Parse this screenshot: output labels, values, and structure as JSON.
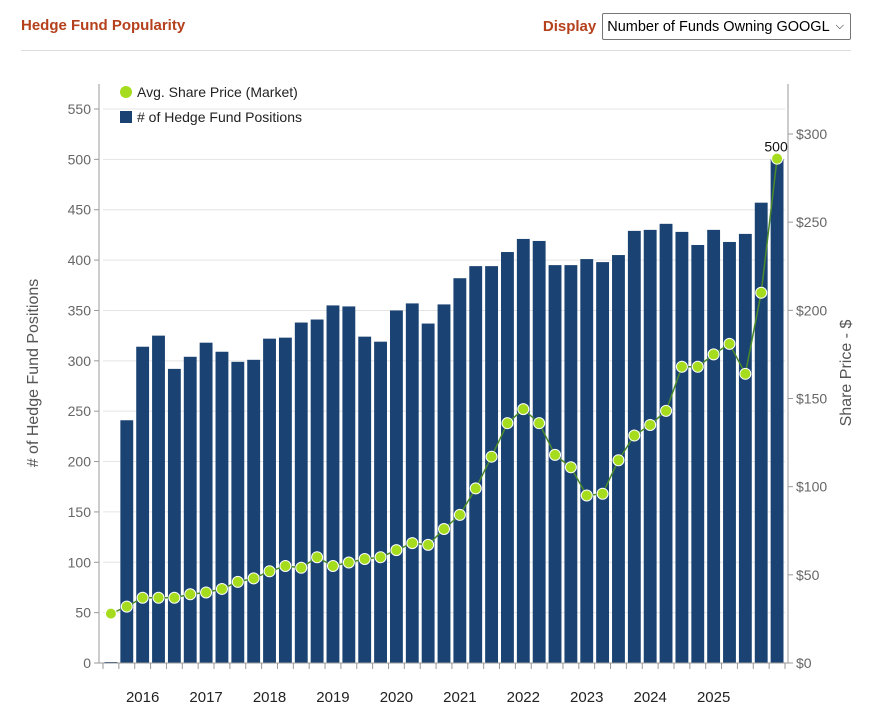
{
  "header": {
    "title": "Hedge Fund Popularity",
    "display_label": "Display",
    "display_value": "Number of Funds Owning GOOGL"
  },
  "colors": {
    "bar": "#1a4373",
    "line": "#4a8a2a",
    "point": "#a6dc1e",
    "grid": "#e4e4e4",
    "accent": "#b5401c"
  },
  "chart_data": {
    "type": "bar",
    "ylabel": "# of Hedge Fund Positions",
    "y2label": "Share Price - $",
    "ylim": [
      0,
      550
    ],
    "y_ticks": [
      0,
      50,
      100,
      150,
      200,
      250,
      300,
      350,
      400,
      450,
      500,
      550
    ],
    "y2lim": [
      0,
      300
    ],
    "y2_ticks": [
      0,
      50,
      100,
      150,
      200,
      250,
      300
    ],
    "y2_tick_labels": [
      "$0",
      "$50",
      "$100",
      "$150",
      "$200",
      "$250",
      "$300"
    ],
    "grid": true,
    "legend_position": "top-left",
    "x_year_labels": [
      "2016",
      "2017",
      "2018",
      "2019",
      "2020",
      "2021",
      "2022",
      "2023",
      "2024",
      "2025"
    ],
    "series": [
      {
        "name": "# of Hedge Fund Positions",
        "axis": "left",
        "values": [
          1,
          241,
          314,
          325,
          292,
          304,
          318,
          309,
          299,
          301,
          322,
          323,
          338,
          341,
          355,
          354,
          324,
          319,
          350,
          357,
          337,
          356,
          382,
          394,
          394,
          408,
          421,
          419,
          395,
          395,
          401,
          398,
          405,
          429,
          430,
          436,
          428,
          415,
          430,
          418,
          426,
          457,
          500
        ]
      },
      {
        "name": "Avg. Share Price (Market)",
        "axis": "right",
        "values": [
          28,
          32,
          37,
          37,
          37,
          39,
          40,
          42,
          46,
          48,
          52,
          55,
          54,
          60,
          55,
          57,
          59,
          60,
          64,
          68,
          67,
          76,
          84,
          99,
          117,
          136,
          144,
          136,
          118,
          111,
          95,
          96,
          115,
          129,
          135,
          143,
          168,
          168,
          175,
          181,
          164,
          210,
          286
        ]
      }
    ],
    "annotations": [
      {
        "label": "500"
      }
    ]
  }
}
